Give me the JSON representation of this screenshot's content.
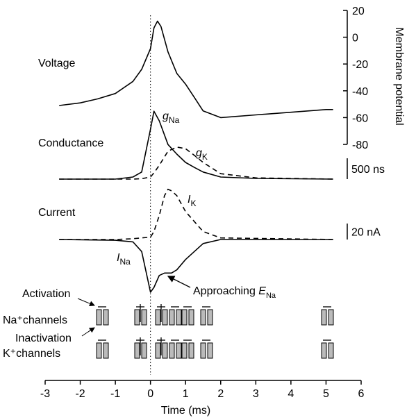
{
  "chart_data": [
    {
      "type": "line",
      "title": "Voltage",
      "y_label": "Membrane potential",
      "ylim": [
        -80,
        20
      ],
      "yticks": [
        20,
        0,
        -20,
        -40,
        -60,
        -80
      ],
      "x": [
        -2.6,
        -2,
        -1.5,
        -1,
        -0.5,
        -0.25,
        0,
        0.1,
        0.2,
        0.3,
        0.5,
        0.75,
        1,
        1.25,
        1.5,
        2,
        3,
        4,
        5,
        5.2
      ],
      "series": [
        {
          "color": "#000000",
          "dash": false,
          "values": [
            -51,
            -49,
            -46,
            -42,
            -33,
            -24,
            -8.5,
            7,
            12,
            8,
            -11,
            -27,
            -35,
            -45,
            -55,
            -60,
            -58,
            -56,
            -54,
            -54
          ]
        }
      ]
    },
    {
      "type": "line",
      "title": "Conductance",
      "scale_bar": {
        "value": 500,
        "label": "500 ns"
      },
      "x": [
        -2.6,
        -1,
        -0.5,
        -0.25,
        0,
        0.1,
        0.25,
        0.5,
        0.75,
        1,
        1.25,
        1.5,
        2,
        3,
        5.2
      ],
      "series": [
        {
          "name": "g",
          "subscript": "Na",
          "color": "#000000",
          "dash": false,
          "values": [
            0,
            0,
            50,
            170,
            1200,
            1630,
            1400,
            830,
            600,
            400,
            280,
            170,
            50,
            17,
            0
          ]
        },
        {
          "name": "g",
          "subscript": "K",
          "color": "#000000",
          "dash": true,
          "values": [
            0,
            0,
            0,
            10,
            50,
            150,
            330,
            670,
            770,
            730,
            570,
            400,
            130,
            30,
            0
          ]
        }
      ]
    },
    {
      "type": "line",
      "title": "Current",
      "scale_bar": {
        "value": 20,
        "label": "20 nA"
      },
      "x": [
        -2.6,
        -1,
        -0.5,
        -0.25,
        0,
        0.1,
        0.25,
        0.4,
        0.5,
        0.6,
        0.75,
        1,
        1.5,
        2,
        5.2
      ],
      "series": [
        {
          "name": "I",
          "subscript": "Na",
          "color": "#000000",
          "dash": false,
          "values": [
            0,
            -1,
            -3,
            -15,
            -66,
            -60,
            -45,
            -42,
            -42,
            -42,
            -38,
            -25,
            -5,
            0,
            0
          ]
        },
        {
          "name": "I",
          "subscript": "K",
          "color": "#000000",
          "dash": true,
          "values": [
            0,
            0,
            1,
            2,
            3,
            10,
            30,
            55,
            63,
            61,
            55,
            35,
            10,
            2,
            0
          ]
        }
      ],
      "annotation": {
        "text": "Approaching ",
        "italic": "E",
        "subscript": "Na"
      }
    }
  ],
  "time_axis": {
    "label": "Time (ms)",
    "xlim": [
      -3,
      6
    ],
    "xticks": [
      -3,
      -2,
      -1,
      0,
      1,
      2,
      3,
      4,
      5,
      6
    ],
    "reference_line_x": 0
  },
  "channels": {
    "rows": [
      "Na⁺channels",
      "K⁺channels"
    ],
    "activation": "Activation",
    "inactivation": "Inactivation"
  }
}
